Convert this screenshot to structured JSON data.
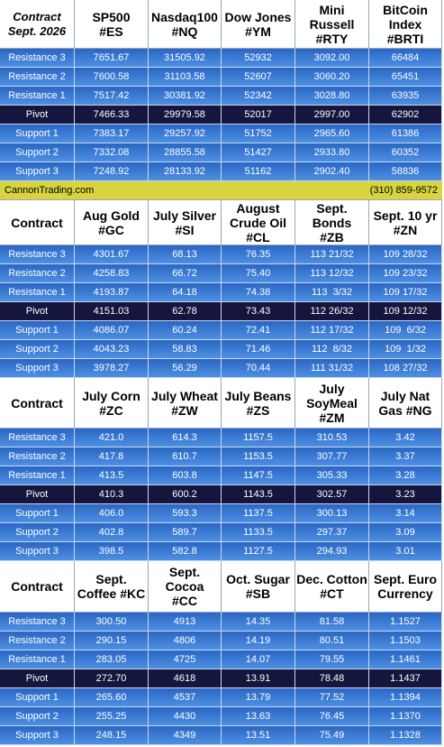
{
  "sections": [
    {
      "header": [
        "Contract\nSept. 2026",
        "SP500\n#ES",
        "Nasdaq100\n#NQ",
        "Dow Jones\n#YM",
        "Mini Russell\n#RTY",
        "BitCoin\nIndex #BRTI"
      ],
      "rows": [
        [
          "Resistance 3",
          "7651.67",
          "31505.92",
          "52932",
          "3092.00",
          "66484"
        ],
        [
          "Resistance 2",
          "7600.58",
          "31103.58",
          "52607",
          "3060.20",
          "65451"
        ],
        [
          "Resistance 1",
          "7517.42",
          "30381.92",
          "52342",
          "3028.80",
          "63935"
        ],
        [
          "Pivot",
          "7466.33",
          "29979.58",
          "52017",
          "2997.00",
          "62902"
        ],
        [
          "Support 1",
          "7383.17",
          "29257.92",
          "51752",
          "2965.60",
          "61386"
        ],
        [
          "Support 2",
          "7332.08",
          "28855.58",
          "51427",
          "2933.80",
          "60352"
        ],
        [
          "Support 3",
          "7248.92",
          "28133.92",
          "51162",
          "2902.40",
          "58836"
        ]
      ],
      "banner": {
        "left": "CannonTrading.com",
        "right": "(310) 859-9572"
      }
    },
    {
      "header": [
        "Contract",
        "Aug Gold\n#GC",
        "July Silver\n#SI",
        "August\nCrude Oil\n#CL",
        "Sept. Bonds\n#ZB",
        "Sept. 10 yr\n#ZN"
      ],
      "rows": [
        [
          "Resistance 3",
          "4301.67",
          "68.13",
          "76.35",
          "113 21/32",
          "109 28/32"
        ],
        [
          "Resistance 2",
          "4258.83",
          "66.72",
          "75.40",
          "113 12/32",
          "109 23/32"
        ],
        [
          "Resistance 1",
          "4193.87",
          "64.18",
          "74.38",
          "113  3/32",
          "109 17/32"
        ],
        [
          "Pivot",
          "4151.03",
          "62.78",
          "73.43",
          "112 26/32",
          "109 12/32"
        ],
        [
          "Support 1",
          "4086.07",
          "60.24",
          "72.41",
          "112 17/32",
          "109  6/32"
        ],
        [
          "Support 2",
          "4043.23",
          "58.83",
          "71.46",
          "112  8/32",
          "109  1/32"
        ],
        [
          "Support 3",
          "3978.27",
          "56.29",
          "70.44",
          "111 31/32",
          "108 27/32"
        ]
      ]
    },
    {
      "header": [
        "Contract",
        "July Corn\n#ZC",
        "July  Wheat\n#ZW",
        "July Beans\n#ZS",
        "July\nSoyMeal\n#ZM",
        "July Nat\nGas #NG"
      ],
      "rows": [
        [
          "Resistance 3",
          "421.0",
          "614.3",
          "1157.5",
          "310.53",
          "3.42"
        ],
        [
          "Resistance 2",
          "417.8",
          "610.7",
          "1153.5",
          "307.77",
          "3.37"
        ],
        [
          "Resistance 1",
          "413.5",
          "603.8",
          "1147.5",
          "305.33",
          "3.28"
        ],
        [
          "Pivot",
          "410.3",
          "600.2",
          "1143.5",
          "302.57",
          "3.23"
        ],
        [
          "Support 1",
          "406.0",
          "593.3",
          "1137.5",
          "300.13",
          "3.14"
        ],
        [
          "Support 2",
          "402.8",
          "589.7",
          "1133.5",
          "297.37",
          "3.09"
        ],
        [
          "Support 3",
          "398.5",
          "582.8",
          "1127.5",
          "294.93",
          "3.01"
        ]
      ]
    },
    {
      "header": [
        "Contract",
        "Sept.\nCoffee #KC",
        "Sept. Cocoa\n#CC",
        "Oct. Sugar\n#SB",
        "Dec. Cotton\n#CT",
        "Sept. Euro\nCurrency"
      ],
      "rows": [
        [
          "Resistance 3",
          "300.50",
          "4913",
          "14.35",
          "81.58",
          "1.1527"
        ],
        [
          "Resistance 2",
          "290.15",
          "4806",
          "14.19",
          "80.51",
          "1.1503"
        ],
        [
          "Resistance 1",
          "283.05",
          "4725",
          "14.07",
          "79.55",
          "1.1461"
        ],
        [
          "Pivot",
          "272.70",
          "4618",
          "13.91",
          "78.48",
          "1.1437"
        ],
        [
          "Support 1",
          "265.60",
          "4537",
          "13.79",
          "77.52",
          "1.1394"
        ],
        [
          "Support 2",
          "255.25",
          "4430",
          "13.63",
          "76.45",
          "1.1370"
        ],
        [
          "Support 3",
          "248.15",
          "4349",
          "13.51",
          "75.49",
          "1.1328"
        ]
      ]
    }
  ]
}
